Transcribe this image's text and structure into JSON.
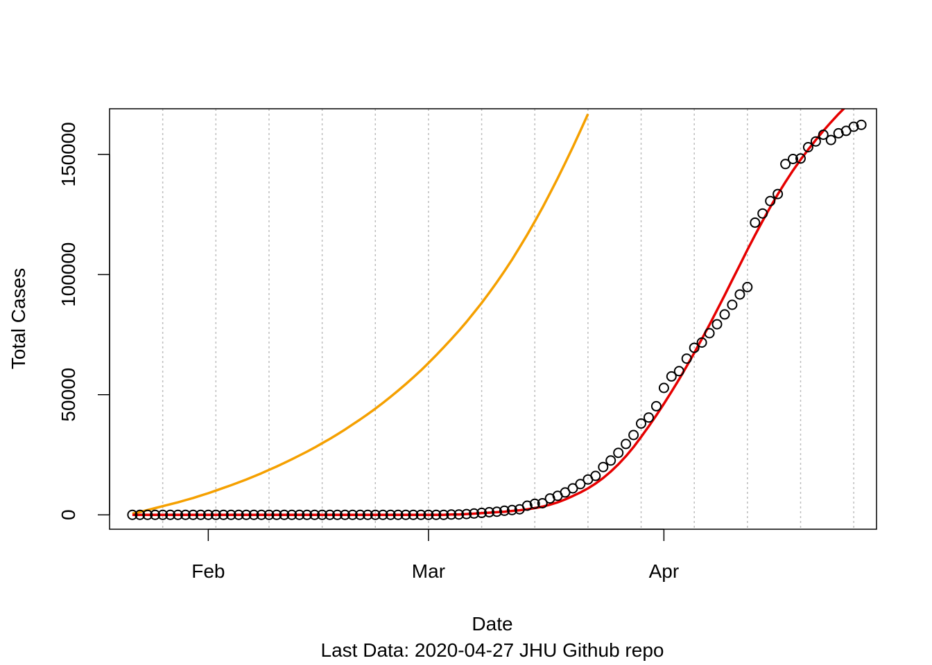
{
  "chart_data": {
    "type": "scatter",
    "title": "",
    "xlabel": "Date",
    "subtitle": "Last Data: 2020-04-27  JHU Github repo",
    "ylabel": "Total Cases",
    "xlim": [
      "2020-01-19",
      "2020-04-29"
    ],
    "ylim": [
      -6000,
      169000
    ],
    "x_ticks": [
      {
        "date": "2020-02-01",
        "label": "Feb"
      },
      {
        "date": "2020-03-01",
        "label": "Mar"
      },
      {
        "date": "2020-04-01",
        "label": "Apr"
      }
    ],
    "y_ticks": [
      0,
      50000,
      100000,
      150000
    ],
    "grid": "vertical dotted, weekly",
    "grid_dates": [
      "2020-01-26",
      "2020-02-02",
      "2020-02-09",
      "2020-02-16",
      "2020-02-23",
      "2020-03-01",
      "2020-03-08",
      "2020-03-15",
      "2020-03-22",
      "2020-03-29",
      "2020-04-05",
      "2020-04-12",
      "2020-04-19",
      "2020-04-26"
    ],
    "points": {
      "marker": "open-circle",
      "color": "#000000",
      "start_date": "2020-01-22",
      "values": [
        0,
        0,
        0,
        0,
        0,
        0,
        0,
        0,
        0,
        0,
        0,
        0,
        0,
        0,
        0,
        0,
        0,
        0,
        0,
        0,
        0,
        0,
        0,
        0,
        0,
        0,
        0,
        0,
        0,
        0,
        0,
        0,
        0,
        0,
        0,
        0,
        0,
        0,
        0,
        0,
        0,
        0,
        100,
        150,
        300,
        550,
        800,
        1100,
        1300,
        1700,
        2000,
        2300,
        3800,
        4600,
        4800,
        6800,
        7900,
        9300,
        11000,
        12800,
        14700,
        16200,
        19900,
        22600,
        25800,
        29500,
        33200,
        38000,
        40500,
        45200,
        52800,
        57600,
        59800,
        65000,
        69500,
        71700,
        75600,
        79300,
        83400,
        87400,
        91700,
        94800,
        121600,
        125400,
        130600,
        133500,
        146000,
        148100,
        148300,
        153000,
        155400,
        158200,
        156000,
        158800,
        159800,
        161500,
        162300
      ]
    },
    "series": [
      {
        "color": "#f5a000",
        "start_date": "2020-01-22",
        "values": [
          500,
          1200,
          2000,
          2800,
          3600,
          4400,
          5200,
          6100,
          7000,
          8000,
          9000,
          10100,
          11200,
          12300,
          13500,
          14700,
          16000,
          17300,
          18700,
          20100,
          21600,
          23100,
          24700,
          26300,
          28000,
          29800,
          31600,
          33500,
          35500,
          37600,
          39700,
          41900,
          44200,
          46600,
          49100,
          51700,
          54400,
          57200,
          60100,
          63200,
          66400,
          69700,
          73100,
          76600,
          80300,
          84200,
          88200,
          92400,
          96800,
          101400,
          106200,
          111300,
          116600,
          122100,
          127800,
          133800,
          140000,
          146400,
          153000,
          159800,
          166800
        ]
      },
      {
        "color": "#e60000",
        "start_date": "2020-01-22",
        "values": [
          0,
          0,
          0,
          0,
          0,
          0,
          0,
          0,
          0,
          0,
          0,
          0,
          0,
          0,
          0,
          0,
          0,
          0,
          0,
          0,
          0,
          0,
          0,
          0,
          0,
          0,
          0,
          0,
          0,
          0,
          0,
          0,
          0,
          0,
          0,
          0,
          0,
          0,
          0,
          0,
          0,
          0,
          100,
          150,
          300,
          500,
          700,
          900,
          1100,
          1300,
          1600,
          1900,
          2300,
          2800,
          3400,
          4200,
          5200,
          6400,
          7800,
          9300,
          11000,
          13000,
          15300,
          18000,
          21000,
          24400,
          28200,
          32400,
          36800,
          41400,
          46200,
          51200,
          56400,
          61800,
          67400,
          73200,
          79100,
          85200,
          91400,
          97700,
          104000,
          110300,
          116400,
          122300,
          128000,
          133400,
          138500,
          143300,
          147800,
          152000,
          156000,
          159800,
          163400,
          166800,
          170000
        ]
      }
    ]
  }
}
